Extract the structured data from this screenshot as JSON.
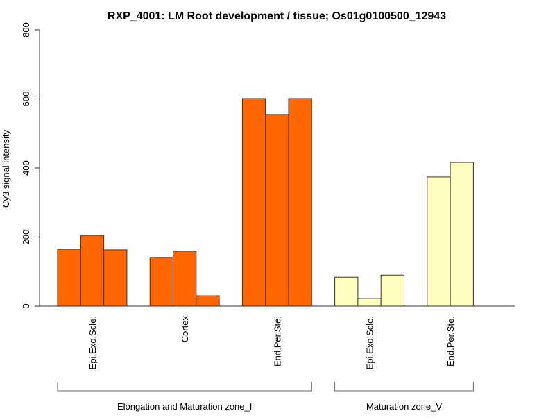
{
  "chart_data": {
    "type": "bar",
    "title": "RXP_4001: LM Root development / tissue; Os01g0100500_12943",
    "xlabel": "",
    "ylabel": "Cy3 signal intensity",
    "ylim": [
      0,
      800
    ],
    "yticks": [
      "0",
      "200",
      "400",
      "600",
      "800"
    ],
    "grid": false,
    "groups": [
      {
        "label": "Elongation and Maturation zone_I",
        "color": "#FF6600",
        "categories": [
          {
            "label": "Epi.Exo.Scle.",
            "values": [
              165,
              205,
              163
            ]
          },
          {
            "label": "Cortex",
            "values": [
              141,
              159,
              30
            ]
          },
          {
            "label": "End.Per.Ste.",
            "values": [
              601,
              555,
              601
            ]
          }
        ]
      },
      {
        "label": "Maturation zone_V",
        "color": "#FFFFC0",
        "categories": [
          {
            "label": "Epi.Exo.Scle.",
            "values": [
              84,
              22,
              90
            ]
          },
          {
            "label": "End.Per.Ste.",
            "values": [
              374,
              416
            ]
          }
        ]
      }
    ]
  }
}
